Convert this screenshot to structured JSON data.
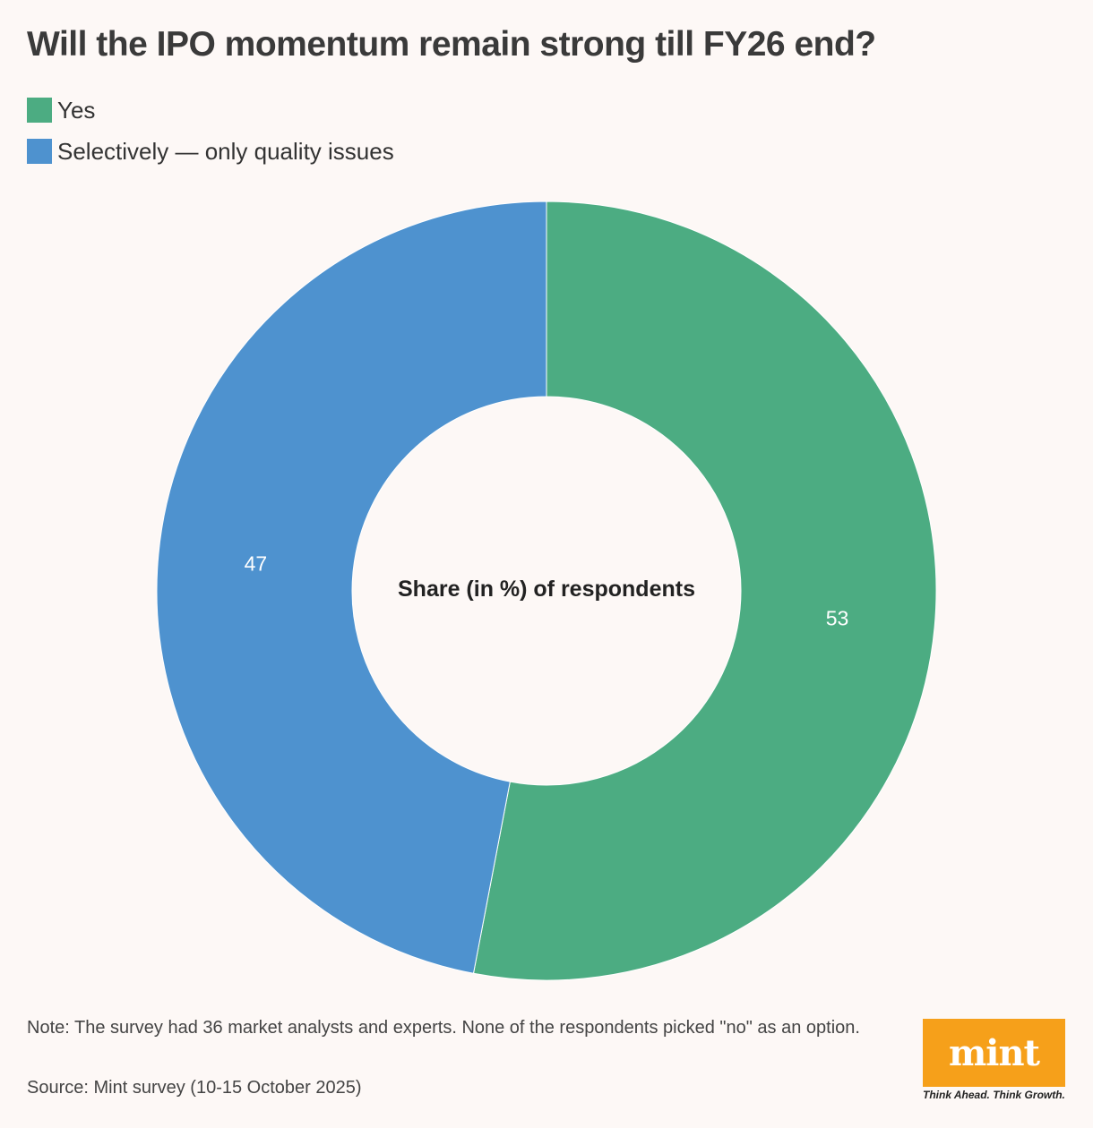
{
  "title": "Will the IPO momentum remain strong till FY26 end?",
  "legend": [
    {
      "label": "Yes",
      "color": "#4cac82"
    },
    {
      "label": "Selectively — only quality issues",
      "color": "#4e92cf"
    }
  ],
  "chart_data": {
    "type": "pie",
    "subtype": "donut",
    "center_label": "Share (in %) of respondents",
    "series": [
      {
        "name": "Yes",
        "value": 53,
        "label": "53",
        "color": "#4cac82"
      },
      {
        "name": "Selectively — only quality issues",
        "value": 47,
        "label": "47",
        "color": "#4e92cf"
      }
    ]
  },
  "note": "Note: The survey had 36 market analysts and experts. None of the respondents picked \"no\" as an option.",
  "source": "Source: Mint survey (10-15 October 2025)",
  "logo": {
    "text": "mint",
    "tagline": "Think Ahead. Think Growth.",
    "color": "#f6a01a"
  }
}
